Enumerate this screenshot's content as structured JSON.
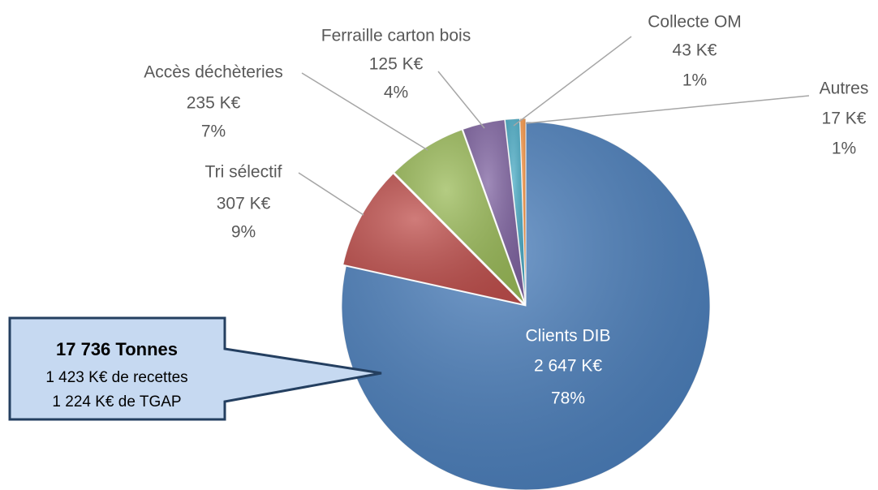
{
  "chart_data": {
    "type": "pie",
    "categories": [
      "Clients DIB",
      "Tri sélectif",
      "Accès déchèteries",
      "Ferraille carton bois",
      "Collecte OM",
      "Autres"
    ],
    "values": [
      2647,
      307,
      235,
      125,
      43,
      17
    ],
    "value_labels": [
      "2 647 K€",
      "307 K€",
      "235 K€",
      "125 K€",
      "43 K€",
      "17 K€"
    ],
    "percent_labels": [
      "78%",
      "9%",
      "7%",
      "4%",
      "1%",
      "1%"
    ],
    "colors": [
      "#4a7ebb",
      "#c0504d",
      "#9bbb59",
      "#8064a2",
      "#4bacc6",
      "#f79646"
    ],
    "annotation": {
      "title": "17 736 Tonnes",
      "lines": [
        "1 423 K€ de recettes",
        "1 224 K€ de TGAP"
      ]
    }
  }
}
